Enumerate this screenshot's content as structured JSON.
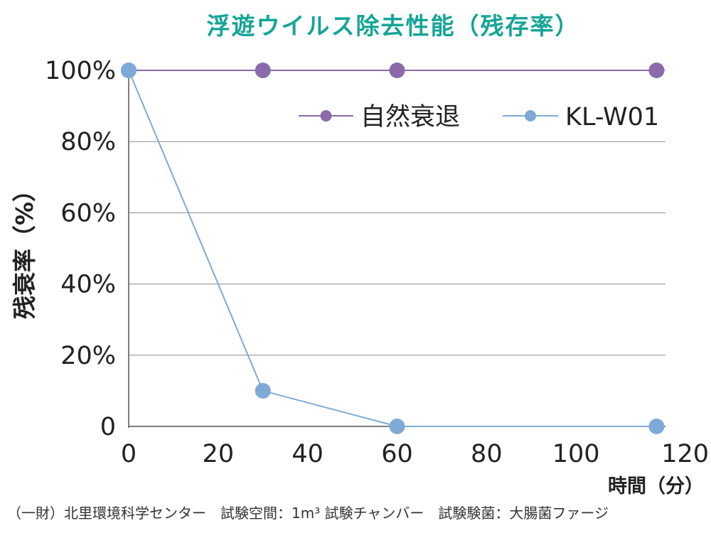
{
  "chart_data": {
    "type": "line",
    "title": "浮遊ウイルス除去性能（残存率）",
    "ylabel": "残衰率（%）",
    "xlabel": "時間（分）",
    "xlim": [
      0,
      120
    ],
    "ylim": [
      0,
      100
    ],
    "x_ticks": [
      "0",
      "20",
      "40",
      "60",
      "80",
      "100",
      "120"
    ],
    "y_ticks": [
      "0",
      "20%",
      "40%",
      "60%",
      "80%",
      "100%"
    ],
    "grid": "horizontal",
    "legend_position": "top-right",
    "series": [
      {
        "name": "自然衰退",
        "color": "#8a6aaa",
        "points": [
          [
            0,
            100
          ],
          [
            30,
            100
          ],
          [
            60,
            100
          ],
          [
            118,
            100
          ]
        ]
      },
      {
        "name": "KL-W01",
        "color": "#7fa9d6",
        "points": [
          [
            0,
            100
          ],
          [
            30,
            10
          ],
          [
            60,
            0
          ],
          [
            118,
            0
          ]
        ]
      }
    ],
    "footnote": "（一財）北里環境科学センター　試験空間：1m³ 試験チャンバー　試験験菌：大腸菌ファージ"
  }
}
